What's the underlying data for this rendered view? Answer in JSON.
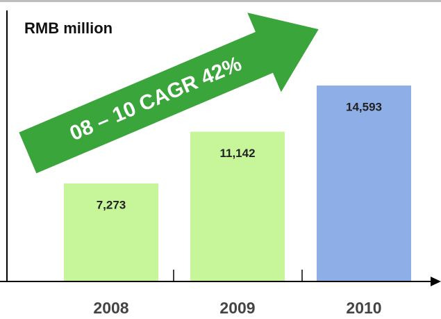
{
  "chart_data": {
    "type": "bar",
    "y_label": "RMB million",
    "annotation": "08 – 10 CAGR 42%",
    "categories": [
      "2008",
      "2009",
      "2010"
    ],
    "values": [
      7273,
      11142,
      14593
    ],
    "value_labels": [
      "7,273",
      "11,142",
      "14,593"
    ],
    "colors": [
      "#c6f59a",
      "#c6f59a",
      "#8eaee8"
    ],
    "ylim": [
      0,
      20000
    ]
  }
}
